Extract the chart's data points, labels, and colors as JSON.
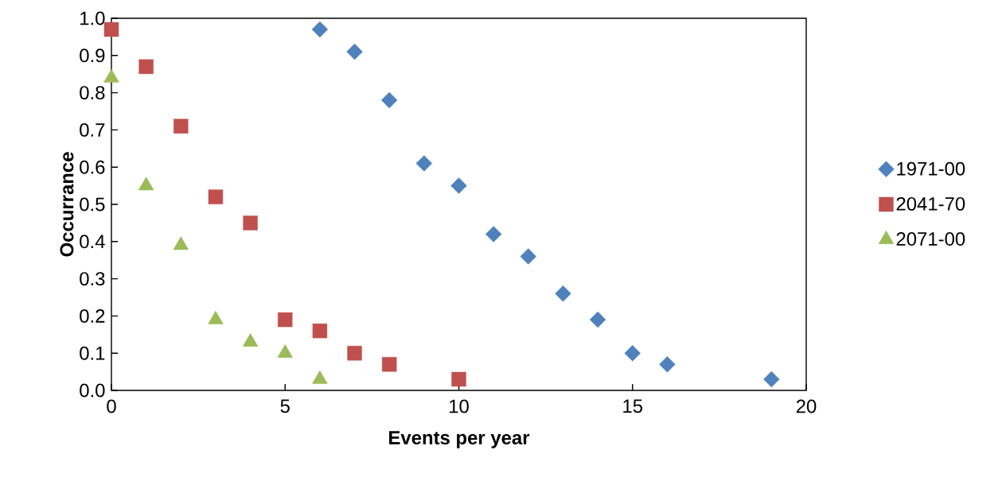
{
  "chart_data": {
    "type": "scatter",
    "xlabel": "Events per year",
    "ylabel": "Occurrance",
    "xlim": [
      0,
      20
    ],
    "xticks": [
      0,
      5,
      10,
      15,
      20
    ],
    "ylim": [
      0,
      1
    ],
    "yticks": [
      {
        "value": 0,
        "label": "0.0"
      },
      0.1,
      0.2,
      0.3,
      0.4,
      0.5,
      0.6,
      0.7,
      0.8,
      0.9,
      {
        "value": 1,
        "label": "1.0"
      }
    ],
    "legend": "right",
    "grid": false,
    "series": [
      {
        "name": "1971-00",
        "color": "#4f81bd",
        "marker": "diamond",
        "x": [
          6,
          7,
          8,
          9,
          10,
          11,
          12,
          13,
          14,
          15,
          16,
          19
        ],
        "values": [
          0.97,
          0.91,
          0.78,
          0.61,
          0.55,
          0.42,
          0.36,
          0.26,
          0.19,
          0.1,
          0.07,
          0.03
        ]
      },
      {
        "name": "2041-70",
        "color": "#c0504d",
        "marker": "square",
        "x": [
          0,
          1,
          2,
          3,
          4,
          5,
          6,
          7,
          8,
          10
        ],
        "values": [
          0.97,
          0.87,
          0.71,
          0.52,
          0.45,
          0.19,
          0.16,
          0.1,
          0.07,
          0.03
        ]
      },
      {
        "name": "2071-00",
        "color": "#9bbb59",
        "marker": "triangle",
        "x": [
          0,
          1,
          2,
          3,
          4,
          5,
          6
        ],
        "values": [
          0.84,
          0.55,
          0.39,
          0.19,
          0.13,
          0.1,
          0.03
        ]
      }
    ]
  }
}
